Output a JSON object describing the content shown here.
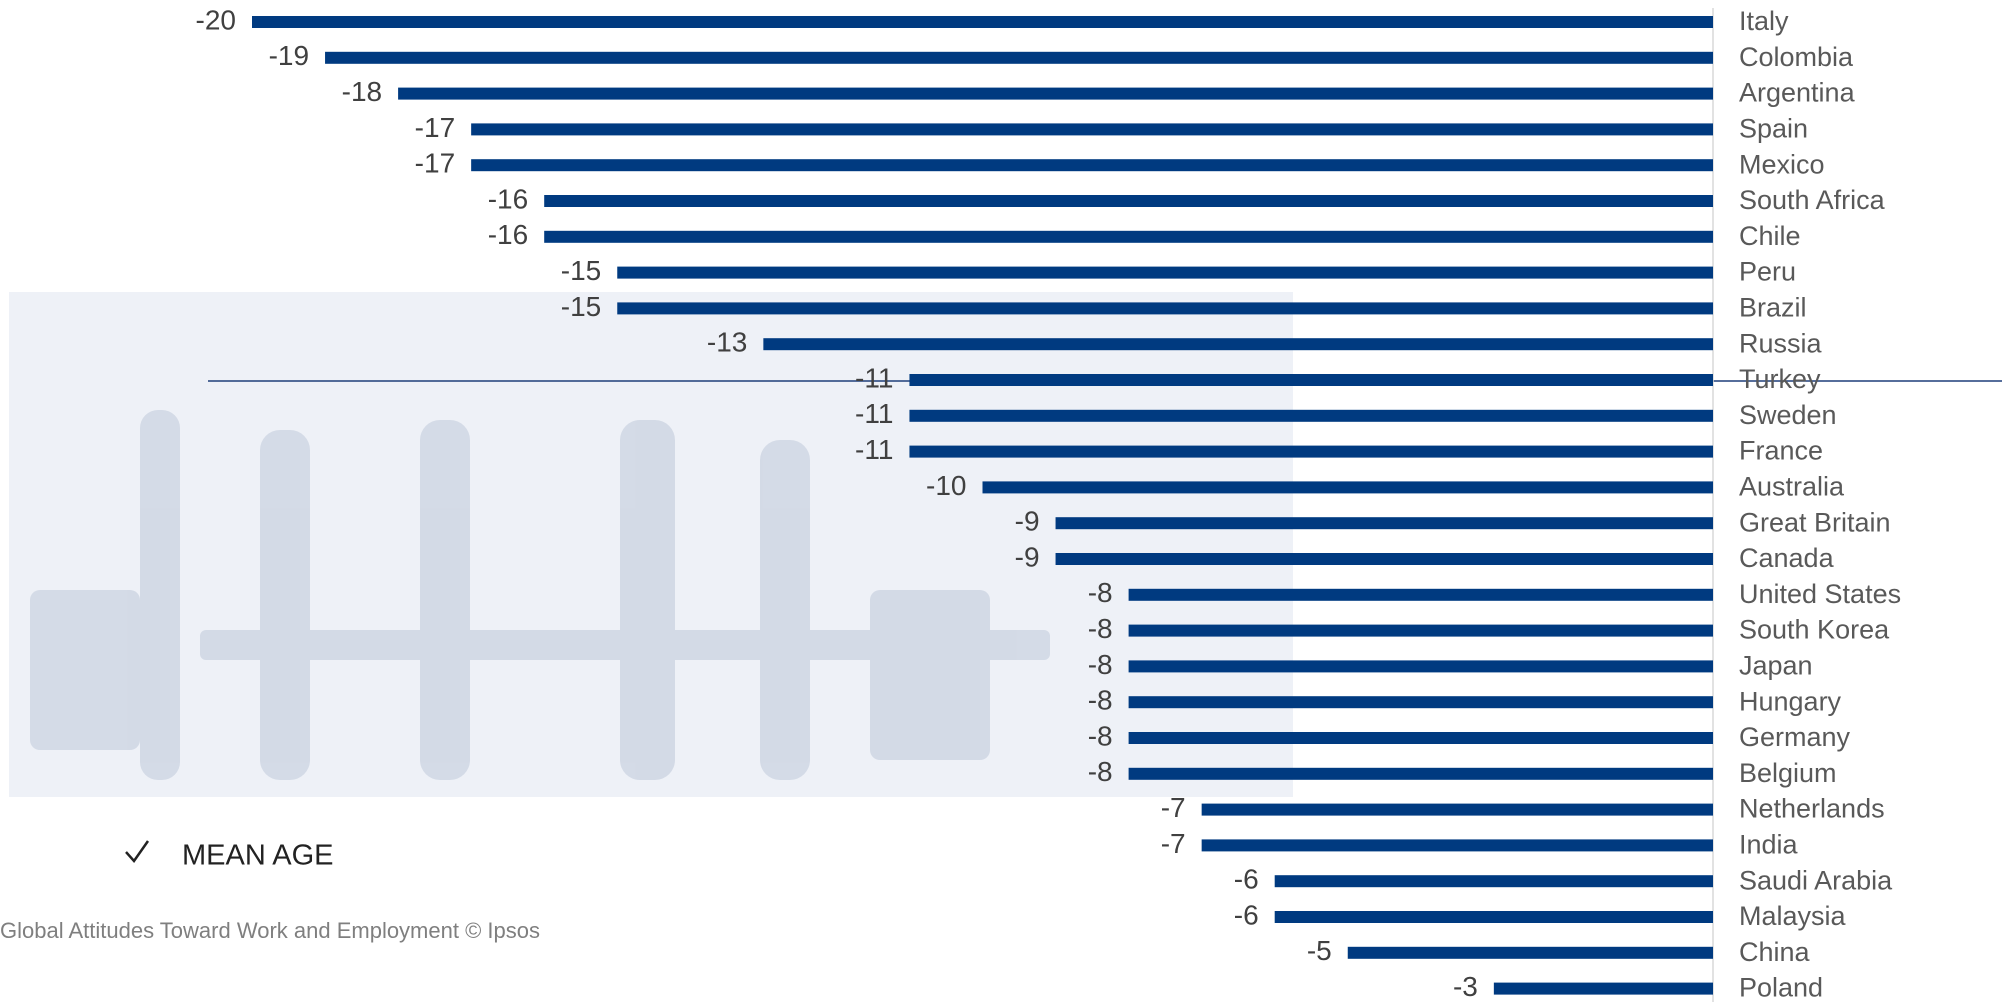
{
  "chart_data": {
    "type": "barh",
    "categories": [
      "Italy",
      "Colombia",
      "Argentina",
      "Spain",
      "Mexico",
      "South Africa",
      "Chile",
      "Peru",
      "Brazil",
      "Russia",
      "Turkey",
      "Sweden",
      "France",
      "Australia",
      "Great Britain",
      "Canada",
      "United States",
      "South Korea",
      "Japan",
      "Hungary",
      "Germany",
      "Belgium",
      "Netherlands",
      "India",
      "Saudi Arabia",
      "Malaysia",
      "China",
      "Poland"
    ],
    "values": [
      -20,
      -19,
      -18,
      -17,
      -17,
      -16,
      -16,
      -15,
      -15,
      -13,
      -11,
      -11,
      -11,
      -10,
      -9,
      -9,
      -8,
      -8,
      -8,
      -8,
      -8,
      -8,
      -7,
      -7,
      -6,
      -6,
      -5,
      -3
    ],
    "color": "#003a80",
    "xlim": [
      -20,
      0
    ],
    "annotation": "MEAN AGE",
    "footnote": "Global Attitudes Toward Work and Employment © Ipsos"
  }
}
